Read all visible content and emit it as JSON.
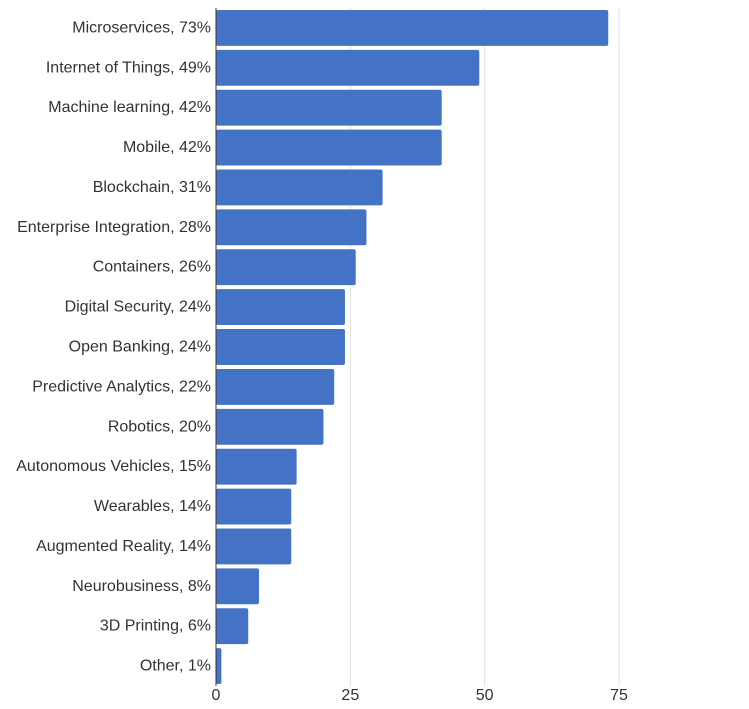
{
  "chart_data": {
    "type": "bar",
    "orientation": "horizontal",
    "title": "",
    "xlabel": "",
    "ylabel": "",
    "xlim": [
      0,
      100
    ],
    "xticks": [
      "0",
      "25",
      "50",
      "75"
    ],
    "grid": "vertical",
    "bar_color": "#4472c4",
    "categories": [
      "Microservices, 73%",
      "Internet of Things, 49%",
      "Machine learning, 42%",
      "Mobile, 42%",
      "Blockchain, 31%",
      "Enterprise Integration, 28%",
      "Containers, 26%",
      "Digital Security, 24%",
      "Open Banking, 24%",
      "Predictive Analytics, 22%",
      "Robotics, 20%",
      "Autonomous Vehicles, 15%",
      "Wearables, 14%",
      "Augmented Reality, 14%",
      "Neurobusiness, 8%",
      "3D Printing, 6%",
      "Other, 1%"
    ],
    "values": [
      73,
      49,
      42,
      42,
      31,
      28,
      26,
      24,
      24,
      22,
      20,
      15,
      14,
      14,
      8,
      6,
      1
    ]
  }
}
